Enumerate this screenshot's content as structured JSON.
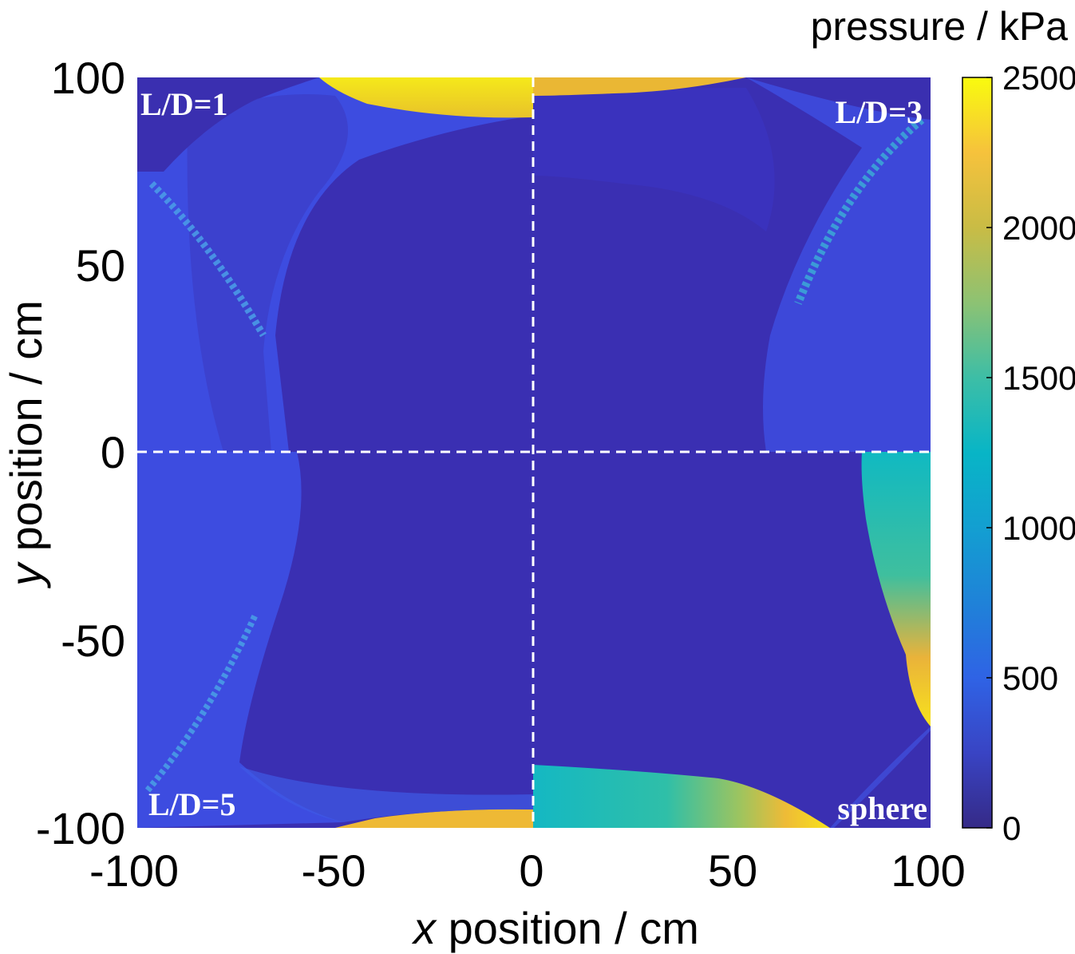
{
  "chart_data": {
    "type": "heatmap",
    "title": "",
    "xlabel_var": "x",
    "xlabel_rest": " position / cm",
    "ylabel_var": "y",
    "ylabel_rest": " position / cm",
    "xlim": [
      -100,
      100
    ],
    "ylim": [
      -100,
      100
    ],
    "x_ticks": [
      -100,
      -50,
      0,
      50,
      100
    ],
    "y_ticks": [
      100,
      50,
      0,
      -50,
      -100
    ],
    "colorbar": {
      "label": "pressure / kPa",
      "range": [
        0,
        2500
      ],
      "ticks": [
        2500,
        2000,
        1500,
        1000,
        500,
        0
      ],
      "colormap": "parula"
    },
    "quadrants": [
      {
        "label": "L/D=1",
        "position": "top-left"
      },
      {
        "label": "L/D=3",
        "position": "top-right"
      },
      {
        "label": "L/D=5",
        "position": "bottom-left"
      },
      {
        "label": "sphere",
        "position": "bottom-right"
      }
    ],
    "divider_lines": [
      "x=0",
      "y=0"
    ]
  },
  "colors": {
    "background_level": "#3a2fae",
    "low": "#352a87",
    "mid_low": "#3b52e6",
    "mid": "#1aa8d6",
    "mid_high": "#16bfbf",
    "high": "#e6b12c",
    "max": "#f9fb0e",
    "divider": "#ffffff"
  }
}
